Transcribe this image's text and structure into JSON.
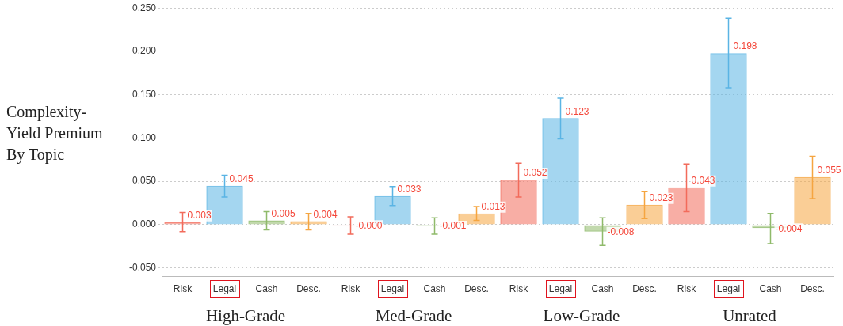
{
  "chart_data": {
    "type": "bar",
    "ylabel": "Complexity-Yield Premium By Topic",
    "categories": [
      "Risk",
      "Legal",
      "Cash",
      "Desc.",
      "Risk",
      "Legal",
      "Cash",
      "Desc.",
      "Risk",
      "Legal",
      "Cash",
      "Desc.",
      "Risk",
      "Legal",
      "Cash",
      "Desc."
    ],
    "values": [
      0.003,
      0.045,
      0.005,
      0.004,
      -0.0003,
      0.033,
      -0.001,
      0.013,
      0.052,
      0.123,
      -0.008,
      0.023,
      0.043,
      0.198,
      -0.004,
      0.055
    ],
    "value_labels": [
      "0.003",
      "0.045",
      "0.005",
      "0.004",
      "-0.000",
      "0.033",
      "-0.001",
      "0.013",
      "0.052",
      "0.123",
      "-0.008",
      "0.023",
      "0.043",
      "0.198",
      "-0.004",
      "0.055"
    ],
    "errors": [
      [
        -0.008,
        0.014
      ],
      [
        0.032,
        0.057
      ],
      [
        -0.006,
        0.015
      ],
      [
        -0.006,
        0.013
      ],
      [
        -0.011,
        0.009
      ],
      [
        0.022,
        0.044
      ],
      [
        -0.011,
        0.008
      ],
      [
        0.005,
        0.021
      ],
      [
        0.032,
        0.071
      ],
      [
        0.099,
        0.146
      ],
      [
        -0.024,
        0.008
      ],
      [
        0.007,
        0.038
      ],
      [
        0.015,
        0.07
      ],
      [
        0.158,
        0.238
      ],
      [
        -0.022,
        0.013
      ],
      [
        0.03,
        0.079
      ]
    ],
    "colors": [
      "#f26b5b",
      "#5ab4e4",
      "#8fba6a",
      "#f5a540",
      "#f26b5b",
      "#5ab4e4",
      "#8fba6a",
      "#f5a540",
      "#f26b5b",
      "#5ab4e4",
      "#8fba6a",
      "#f5a540",
      "#f26b5b",
      "#5ab4e4",
      "#8fba6a",
      "#f5a540"
    ],
    "annotations": [
      "High-Grade",
      "Med-Grade",
      "Low-Grade",
      "Unrated"
    ],
    "ylim": [
      -0.06,
      0.25
    ],
    "yticks": [
      {
        "value": -0.05,
        "label": "-0.050"
      },
      {
        "value": 0,
        "label": "0.000"
      },
      {
        "value": 0.05,
        "label": "0.050"
      },
      {
        "value": 0.1,
        "label": "0.100"
      },
      {
        "value": 0.15,
        "label": "0.150"
      },
      {
        "value": 0.2,
        "label": "0.200"
      },
      {
        "value": 0.25,
        "label": "0.250"
      }
    ],
    "grid": "y",
    "legend": false
  }
}
